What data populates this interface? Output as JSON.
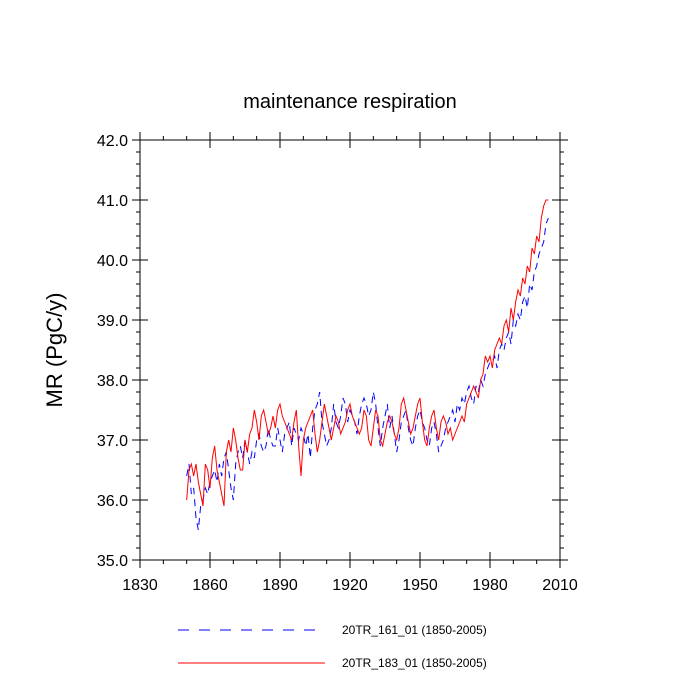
{
  "chart_data": {
    "type": "line",
    "title": "maintenance respiration",
    "xlabel": "",
    "ylabel": "MR  (PgC/y)",
    "xlim": [
      1830,
      2010
    ],
    "ylim": [
      35.0,
      42.0
    ],
    "x_ticks": [
      1830,
      1860,
      1890,
      1920,
      1950,
      1980,
      2010
    ],
    "x_tick_labels": [
      "1830",
      "1860",
      "1890",
      "1920",
      "1950",
      "1980",
      "2010"
    ],
    "y_ticks": [
      35.0,
      36.0,
      37.0,
      38.0,
      39.0,
      40.0,
      41.0,
      42.0
    ],
    "y_tick_labels": [
      "35.0",
      "36.0",
      "37.0",
      "38.0",
      "39.0",
      "40.0",
      "41.0",
      "42.0"
    ],
    "x_start": 1850,
    "legend_position": "bottom",
    "series": [
      {
        "name": "20TR_161_01 (1850-2005)",
        "color": "#0000ff",
        "style": "dashed",
        "values": [
          36.4,
          36.6,
          36.1,
          36.2,
          35.7,
          35.5,
          35.9,
          36.0,
          36.2,
          36.1,
          36.3,
          36.4,
          36.5,
          36.3,
          36.6,
          36.4,
          36.7,
          36.8,
          36.5,
          36.2,
          36.0,
          36.6,
          36.8,
          36.9,
          36.7,
          37.0,
          36.8,
          36.6,
          36.8,
          36.7,
          37.0,
          37.1,
          36.9,
          36.8,
          36.9,
          37.2,
          37.0,
          36.9,
          36.9,
          37.2,
          37.0,
          36.8,
          37.1,
          37.2,
          37.3,
          36.9,
          37.2,
          37.1,
          37.0,
          37.2,
          37.1,
          36.9,
          37.1,
          36.7,
          37.2,
          37.5,
          37.6,
          37.8,
          37.3,
          37.1,
          36.9,
          37.0,
          37.2,
          37.6,
          37.3,
          37.2,
          37.4,
          37.7,
          37.6,
          37.3,
          37.5,
          37.4,
          37.3,
          37.1,
          37.4,
          37.6,
          37.7,
          37.6,
          37.4,
          37.5,
          37.8,
          37.6,
          37.2,
          36.9,
          37.2,
          37.4,
          37.6,
          37.2,
          37.4,
          37.1,
          36.8,
          37.0,
          37.3,
          37.4,
          37.5,
          37.2,
          37.0,
          36.9,
          37.2,
          37.4,
          37.5,
          37.3,
          37.2,
          37.0,
          36.9,
          37.2,
          37.3,
          37.1,
          36.8,
          36.9,
          37.0,
          37.2,
          37.3,
          37.4,
          37.5,
          37.3,
          37.6,
          37.5,
          37.7,
          37.6,
          37.8,
          37.9,
          37.7,
          37.6,
          37.9,
          37.8,
          38.0,
          37.9,
          38.1,
          38.2,
          38.3,
          38.3,
          38.4,
          38.2,
          38.5,
          38.6,
          38.5,
          38.7,
          38.8,
          38.6,
          39.0,
          38.9,
          39.1,
          39.0,
          39.3,
          39.4,
          39.2,
          39.6,
          39.5,
          39.8,
          39.9,
          40.1,
          40.2,
          40.3,
          40.6,
          40.7
        ]
      },
      {
        "name": "20TR_183_01 (1850-2005)",
        "color": "#ff0000",
        "style": "solid",
        "values": [
          36.0,
          36.5,
          36.6,
          36.4,
          36.6,
          36.3,
          36.1,
          35.9,
          36.6,
          36.5,
          36.2,
          36.7,
          36.9,
          36.5,
          36.3,
          36.1,
          35.9,
          36.8,
          37.0,
          36.8,
          37.2,
          37.0,
          36.7,
          36.5,
          36.5,
          37.0,
          36.8,
          37.1,
          37.2,
          37.5,
          37.3,
          37.0,
          37.4,
          37.5,
          37.3,
          37.1,
          37.2,
          37.4,
          37.2,
          37.5,
          37.6,
          37.4,
          37.3,
          37.2,
          37.1,
          37.0,
          37.3,
          37.5,
          36.9,
          36.4,
          37.0,
          37.2,
          37.3,
          37.4,
          37.5,
          37.1,
          36.8,
          37.0,
          37.3,
          37.6,
          37.4,
          37.2,
          37.0,
          37.2,
          37.4,
          37.3,
          37.1,
          37.2,
          37.3,
          37.5,
          37.6,
          37.4,
          37.3,
          37.2,
          37.1,
          37.2,
          37.5,
          37.4,
          37.0,
          36.9,
          37.2,
          37.5,
          37.4,
          37.0,
          36.9,
          37.1,
          37.3,
          37.4,
          37.3,
          37.1,
          37.0,
          37.2,
          37.6,
          37.7,
          37.5,
          37.3,
          37.1,
          37.2,
          37.4,
          37.6,
          37.7,
          37.3,
          37.0,
          36.9,
          37.2,
          37.4,
          37.5,
          37.2,
          37.0,
          37.3,
          37.4,
          37.3,
          37.1,
          37.2,
          37.0,
          37.1,
          37.2,
          37.3,
          37.4,
          37.3,
          37.6,
          37.7,
          37.8,
          37.9,
          37.8,
          37.7,
          38.0,
          38.1,
          38.4,
          38.3,
          38.4,
          38.2,
          38.5,
          38.6,
          38.7,
          38.6,
          38.9,
          39.0,
          38.8,
          39.2,
          39.0,
          39.3,
          39.5,
          39.4,
          39.7,
          39.6,
          39.9,
          39.8,
          40.2,
          40.1,
          40.4,
          40.3,
          40.7,
          40.9,
          41.0,
          41.0
        ]
      }
    ]
  }
}
